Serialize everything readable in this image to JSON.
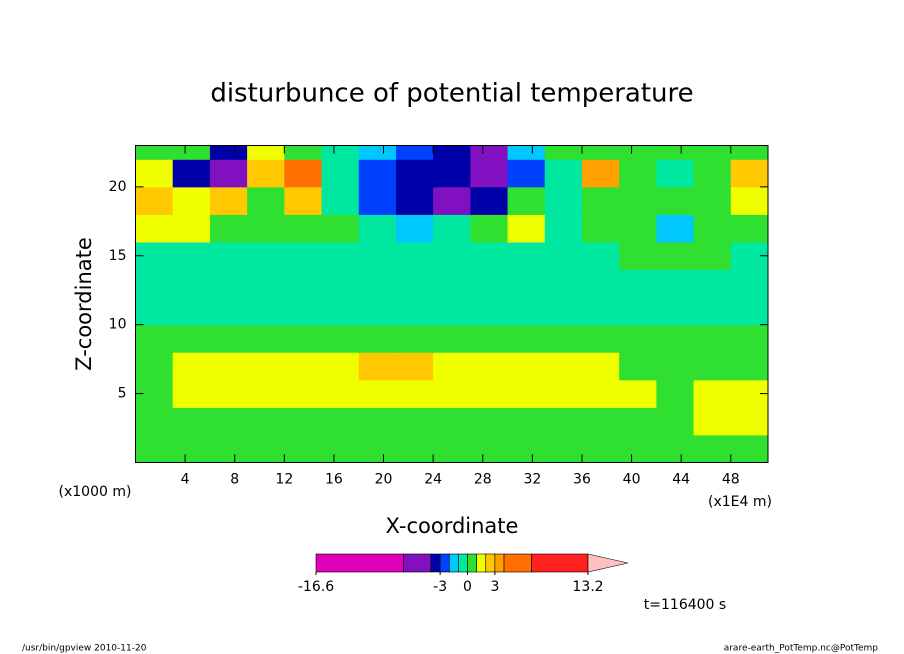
{
  "chart_data": {
    "type": "contour",
    "title": "disturbunce of potential temperature",
    "x_label": "X-coordinate",
    "y_label": "Z-coordinate",
    "x_unit": "(x1E4 m)",
    "y_unit": "(x1000 m)",
    "xlim": [
      0,
      51
    ],
    "ylim": [
      0,
      23
    ],
    "xticks": [
      4,
      8,
      12,
      16,
      20,
      24,
      28,
      32,
      36,
      40,
      44,
      48
    ],
    "yticks": [
      5,
      10,
      15,
      20
    ],
    "x": [
      1.5,
      4.5,
      7.5,
      10.5,
      13.5,
      16.5,
      19.5,
      22.5,
      25.5,
      28.5,
      31.5,
      34.5,
      37.5,
      40.5,
      43.5,
      46.5,
      49.5
    ],
    "y": [
      1,
      3,
      5,
      7,
      9,
      11,
      13,
      15,
      17,
      19,
      21,
      23
    ],
    "z": [
      [
        0.5,
        0.5,
        0.5,
        0.5,
        0.5,
        0.5,
        0.5,
        0.5,
        0.5,
        0.5,
        0.5,
        0.5,
        0.5,
        0.5,
        0.5,
        0.5,
        0.5
      ],
      [
        0.5,
        0.5,
        0.5,
        0.5,
        0.5,
        0.5,
        0.5,
        0.5,
        0.5,
        0.5,
        0.5,
        0.5,
        0.5,
        0.5,
        0.5,
        1.5,
        1.5
      ],
      [
        0.5,
        1.5,
        1.5,
        1.5,
        1.5,
        1.5,
        1.5,
        1.5,
        1.5,
        1.5,
        1.5,
        1.5,
        1.5,
        1.5,
        0.5,
        1.5,
        1.5
      ],
      [
        0.5,
        1.5,
        1.5,
        1.5,
        1.5,
        1.5,
        2.5,
        2.5,
        1.5,
        1.5,
        1.5,
        1.5,
        1.5,
        0.5,
        0.5,
        0.5,
        0.5
      ],
      [
        0.5,
        0.5,
        0.5,
        0.5,
        0.5,
        0.5,
        0.5,
        0.5,
        0.5,
        0.5,
        0.5,
        0.5,
        0.5,
        0.5,
        0.5,
        0.5,
        0.5
      ],
      [
        -0.5,
        -0.5,
        -0.5,
        -0.5,
        -0.5,
        -0.5,
        -0.5,
        -0.5,
        -0.5,
        -0.5,
        -0.5,
        -0.5,
        -0.5,
        -0.5,
        -0.5,
        -0.5,
        -0.5
      ],
      [
        -0.5,
        -0.5,
        -0.5,
        -0.5,
        -0.5,
        -0.5,
        -0.5,
        -0.5,
        -0.5,
        -0.5,
        -0.5,
        -0.5,
        -0.5,
        -0.5,
        -0.5,
        -0.5,
        -0.5
      ],
      [
        -0.5,
        -0.5,
        -0.5,
        -0.5,
        -0.5,
        -0.5,
        -0.5,
        -0.5,
        -0.5,
        -0.5,
        -0.5,
        -0.5,
        -0.5,
        0.5,
        0.5,
        0.5,
        -0.5
      ],
      [
        1.5,
        1.5,
        0.5,
        0.5,
        0.5,
        0.5,
        -0.5,
        -1.5,
        -0.5,
        0.5,
        1.5,
        -0.5,
        0.5,
        0.5,
        -1.5,
        0.5,
        0.5
      ],
      [
        2.5,
        1.5,
        2.5,
        0.5,
        2.5,
        -0.5,
        -2.5,
        -3.5,
        -4.5,
        -3.5,
        0.5,
        -0.5,
        0.5,
        0.5,
        0.5,
        0.5,
        1.5
      ],
      [
        1.5,
        -3.5,
        -4.5,
        2.5,
        4.5,
        -0.5,
        -2.5,
        -3.5,
        -3.5,
        -6,
        -2.5,
        -0.5,
        3.5,
        0.5,
        -0.5,
        0.5,
        2.5
      ],
      [
        0.5,
        0.5,
        -3.5,
        1.5,
        0.5,
        -0.5,
        -1.5,
        -2.5,
        -3.5,
        -5,
        -1.5,
        0.5,
        0.5,
        0.5,
        0.5,
        0.5,
        0.5
      ]
    ],
    "levels": [
      -16.6,
      -7,
      -4,
      -3,
      -2,
      -1,
      0,
      1,
      2,
      3,
      4,
      7,
      13.2
    ],
    "colors": [
      "#e000b8",
      "#8010c0",
      "#0000a8",
      "#0040ff",
      "#00c8ff",
      "#00e8a0",
      "#30e030",
      "#f0ff00",
      "#ffc800",
      "#ffa000",
      "#ff7000",
      "#ff2020",
      "#ff8078"
    ],
    "over_color": "#ffc0c0",
    "colorbar_ticks": [
      -16.6,
      -3,
      0,
      3,
      13.2
    ],
    "time_label": "t=116400 s",
    "footer_left": "/usr/bin/gpview  2010-11-20",
    "footer_right": "arare-earth_PotTemp.nc@PotTemp"
  }
}
